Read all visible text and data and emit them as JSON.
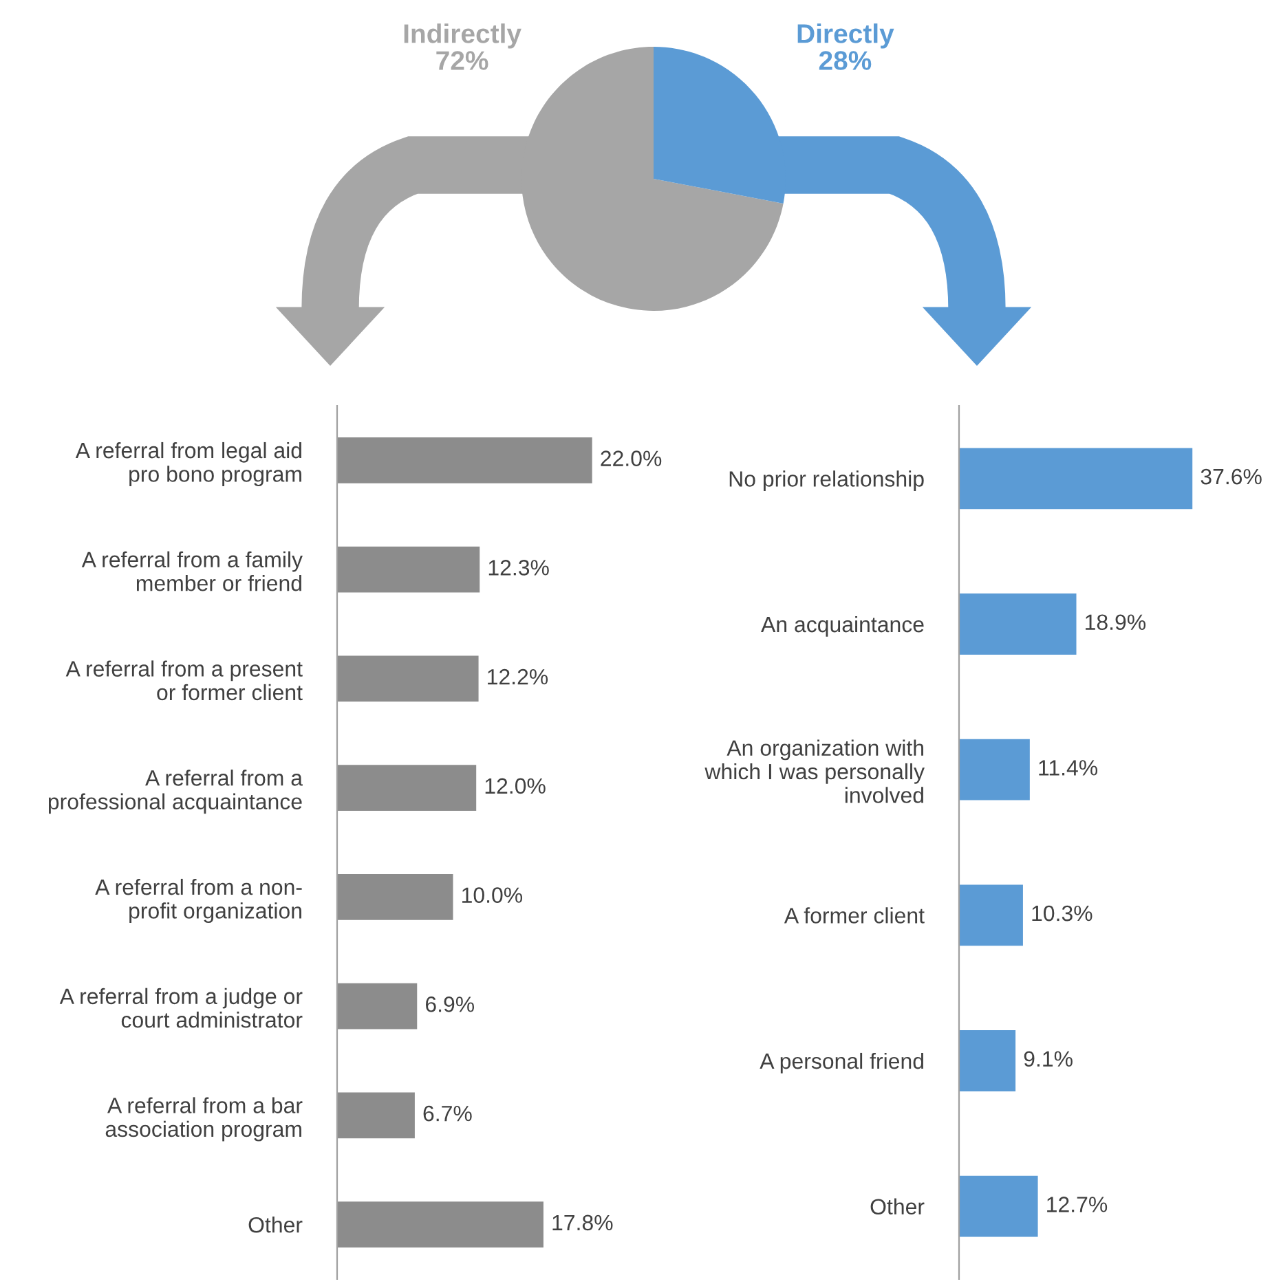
{
  "chart_data": [
    {
      "type": "pie",
      "categories": [
        "Indirectly",
        "Directly"
      ],
      "values": [
        72,
        28
      ],
      "colors": [
        "#a6a6a6",
        "#5b9bd5"
      ],
      "value_labels": [
        "72%",
        "28%"
      ]
    },
    {
      "type": "bar",
      "orientation": "horizontal",
      "categories": [
        "A referral from legal aid\npro bono program",
        "A referral from a family\nmember or friend",
        "A referral from a present\nor former client",
        "A referral from a\nprofessional acquaintance",
        "A referral from a non-\nprofit organization",
        "A referral from a judge or\ncourt administrator",
        "A referral from a bar\nassociation program",
        "Other"
      ],
      "values": [
        22.0,
        12.3,
        12.2,
        12.0,
        10.0,
        6.9,
        6.7,
        17.8
      ],
      "color": "#8c8c8c",
      "value_labels": [
        "22.0%",
        "12.3%",
        "12.2%",
        "12.0%",
        "10.0%",
        "6.9%",
        "6.7%",
        "17.8%"
      ]
    },
    {
      "type": "bar",
      "orientation": "horizontal",
      "categories": [
        "No prior relationship",
        "An acquaintance",
        "An organization with\nwhich I was personally\ninvolved",
        "A former client",
        "A personal friend",
        "Other"
      ],
      "values": [
        37.6,
        18.9,
        11.4,
        10.3,
        9.1,
        12.7
      ],
      "color": "#5b9bd5",
      "value_labels": [
        "37.6%",
        "18.9%",
        "11.4%",
        "10.3%",
        "9.1%",
        "12.7%"
      ]
    }
  ]
}
